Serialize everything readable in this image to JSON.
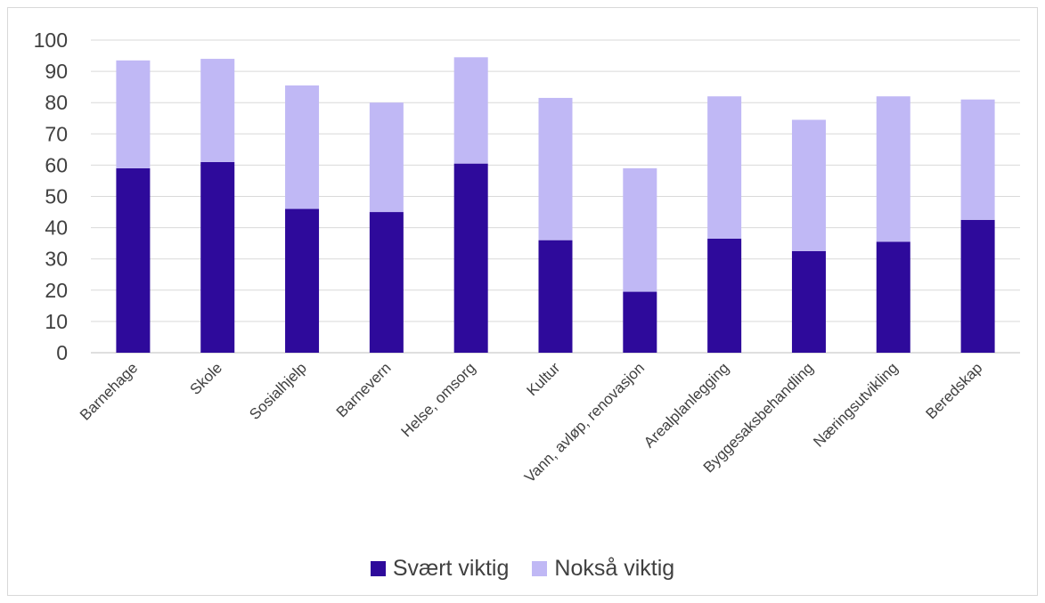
{
  "chart_data": {
    "type": "bar",
    "stacked": true,
    "categories": [
      "Barnehage",
      "Skole",
      "Sosialhjelp",
      "Barnevern",
      "Helse, omsorg",
      "Kultur",
      "Vann, avløp, renovasjon",
      "Arealplanlegging",
      "Byggesaksbehandling",
      "Næringsutvikling",
      "Beredskap"
    ],
    "series": [
      {
        "name": "Svært viktig",
        "color": "#2e0a9b",
        "values": [
          59,
          61,
          46,
          45,
          60.5,
          36,
          19.5,
          36.5,
          32.5,
          35.5,
          42.5
        ]
      },
      {
        "name": "Nokså viktig",
        "color": "#c0b8f5",
        "values": [
          34.5,
          33,
          39.5,
          35,
          34,
          45.5,
          39.5,
          45.5,
          42,
          46.5,
          38.5
        ]
      }
    ],
    "ylim": [
      0,
      100
    ],
    "yticks": [
      0,
      10,
      20,
      30,
      40,
      50,
      60,
      70,
      80,
      90,
      100
    ],
    "grid": true,
    "legend_position": "bottom"
  }
}
